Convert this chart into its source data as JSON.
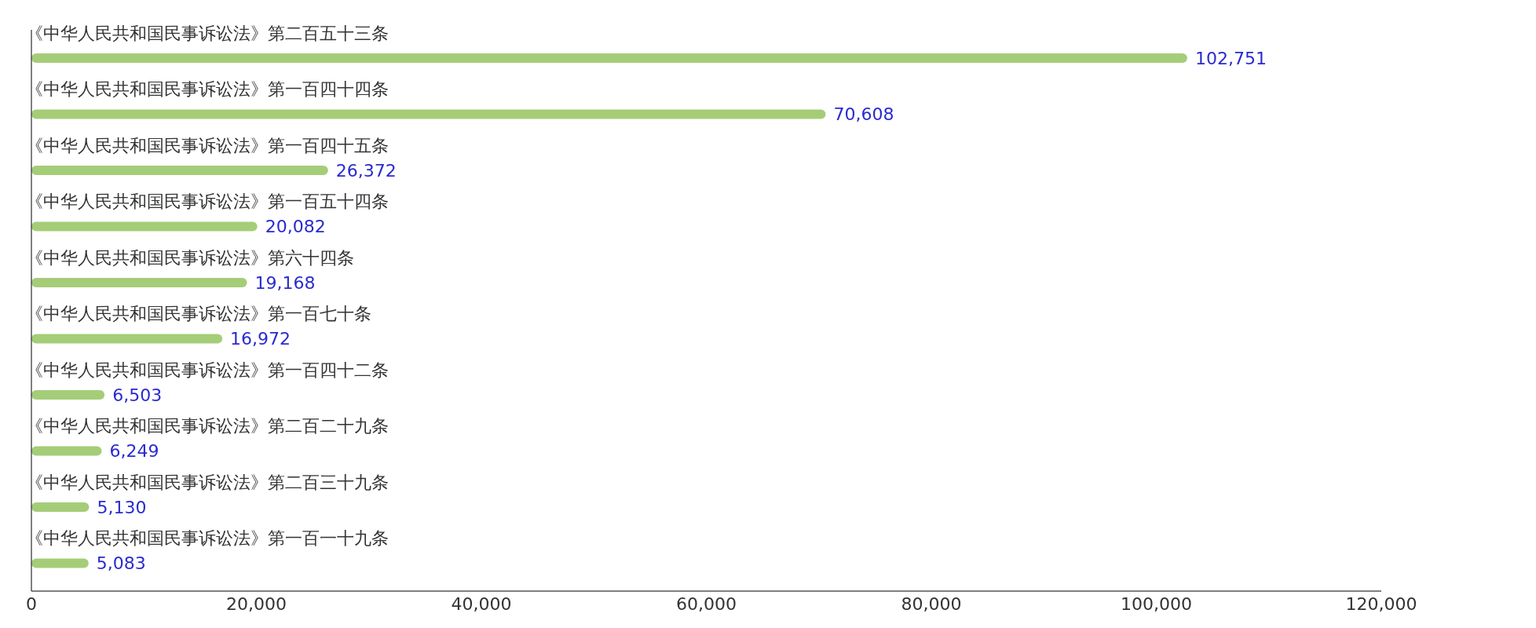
{
  "chart_data": {
    "type": "bar",
    "orientation": "horizontal",
    "categories": [
      "《中华人民共和国民事诉讼法》第二百五十三条",
      "《中华人民共和国民事诉讼法》第一百四十四条",
      "《中华人民共和国民事诉讼法》第一百四十五条",
      "《中华人民共和国民事诉讼法》第一百五十四条",
      "《中华人民共和国民事诉讼法》第六十四条",
      "《中华人民共和国民事诉讼法》第一百七十条",
      "《中华人民共和国民事诉讼法》第一百四十二条",
      "《中华人民共和国民事诉讼法》第二百二十九条",
      "《中华人民共和国民事诉讼法》第二百三十九条",
      "《中华人民共和国民事诉讼法》第一百一十九条"
    ],
    "values": [
      102751,
      70608,
      26372,
      20082,
      19168,
      16972,
      6503,
      6249,
      5130,
      5083
    ],
    "value_labels": [
      "102,751",
      "70,608",
      "26,372",
      "20,082",
      "19,168",
      "16,972",
      "6,503",
      "6,249",
      "5,130",
      "5,083"
    ],
    "color": "#a5cd78",
    "xlim": [
      0,
      120000
    ],
    "xticks": [
      0,
      {
        "value": 20000,
        "label": "20,000"
      },
      {
        "value": 40000,
        "label": "40,000"
      },
      {
        "value": 60000,
        "label": "60,000"
      },
      {
        "value": 80000,
        "label": "80,000"
      },
      {
        "value": 100000,
        "label": "100,000"
      },
      {
        "value": 120000,
        "label": "120,000"
      }
    ],
    "grid": false,
    "legend": false
  }
}
